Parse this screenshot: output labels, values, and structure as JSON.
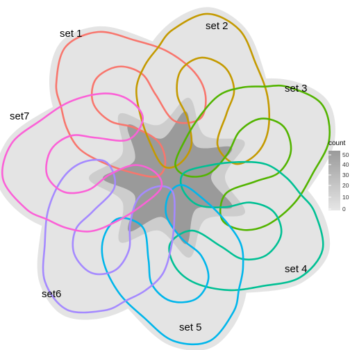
{
  "sets": [
    {
      "label": "set 1",
      "color": "#F8766D"
    },
    {
      "label": "set 2",
      "color": "#C49A00"
    },
    {
      "label": "set 3",
      "color": "#53B400"
    },
    {
      "label": "set 4",
      "color": "#00C094"
    },
    {
      "label": "set 5",
      "color": "#00B6EB"
    },
    {
      "label": "set6",
      "color": "#A58AFF"
    },
    {
      "label": "set7",
      "color": "#FB61D7"
    }
  ],
  "legend": {
    "title": "count",
    "ticks": [
      "50",
      "40",
      "30",
      "20",
      "10",
      "0"
    ],
    "color_high": "#9a9a9a",
    "color_low": "#e6e6e6"
  },
  "region_colors": {
    "center": "#9a9a9a",
    "ring": "#cdcdcd",
    "petal": "#e4e4e4"
  }
}
